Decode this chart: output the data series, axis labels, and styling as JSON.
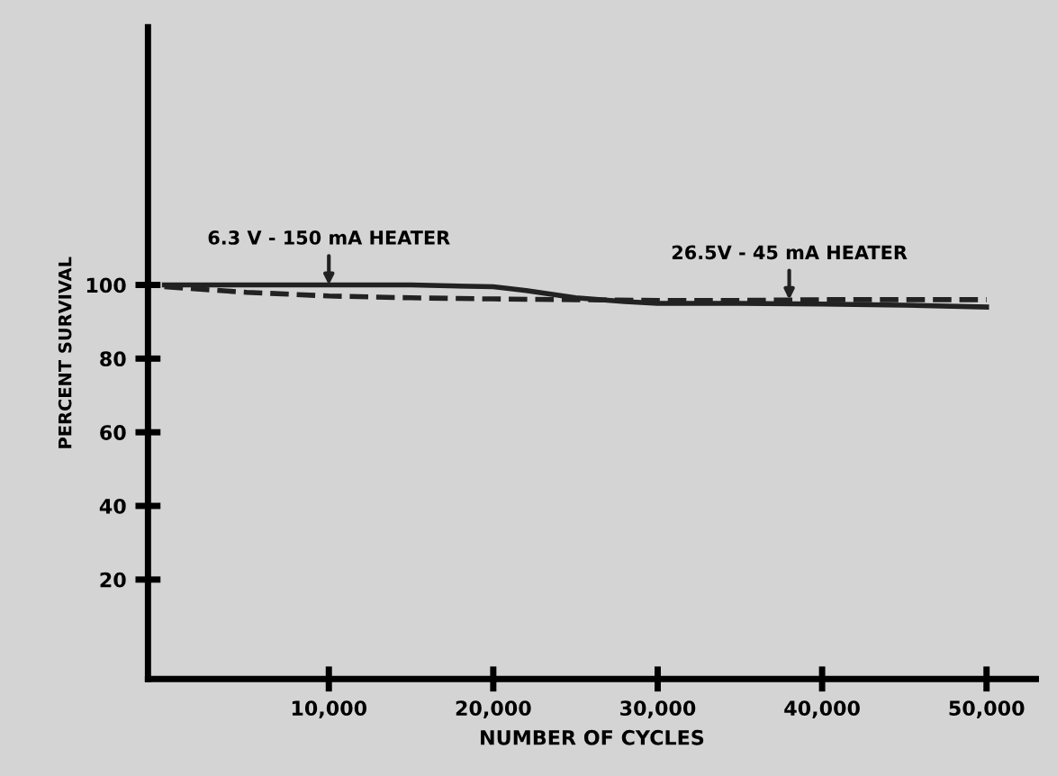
{
  "chart_data": {
    "type": "line",
    "xlabel": "NUMBER OF CYCLES",
    "ylabel": "PERCENT SURVIVAL",
    "xlim": [
      -1000,
      53000
    ],
    "ylim": [
      -7,
      170
    ],
    "xticks": [
      {
        "value": 10000,
        "label": "10,000"
      },
      {
        "value": 20000,
        "label": "20,000"
      },
      {
        "value": 30000,
        "label": "30,000"
      },
      {
        "value": 40000,
        "label": "40,000"
      },
      {
        "value": 50000,
        "label": "50,000"
      }
    ],
    "yticks": [
      20,
      40,
      60,
      80,
      100
    ],
    "grid": false,
    "legend": false,
    "series": [
      {
        "color": "#222222",
        "line_style": "solid",
        "x": [
          0,
          5000,
          10000,
          15000,
          20000,
          22000,
          25000,
          28000,
          30000,
          35000,
          40000,
          45000,
          50000
        ],
        "values": [
          100,
          100,
          100,
          100,
          99.5,
          98.5,
          96.5,
          95.5,
          95,
          95,
          94.8,
          94.5,
          94
        ]
      },
      {
        "color": "#222222",
        "line_style": "dashed",
        "x": [
          0,
          5000,
          10000,
          15000,
          20000,
          25000,
          30000,
          35000,
          40000,
          45000,
          50000
        ],
        "values": [
          99.5,
          98,
          97,
          96.5,
          96.2,
          96,
          95.8,
          95.8,
          96,
          96,
          96
        ]
      }
    ],
    "annotations": [
      {
        "text": "6.3 V - 150 mA HEATER",
        "x": 10000,
        "y": 100
      },
      {
        "text": "26.5V - 45 mA HEATER",
        "x": 38000,
        "y": 96
      }
    ]
  }
}
